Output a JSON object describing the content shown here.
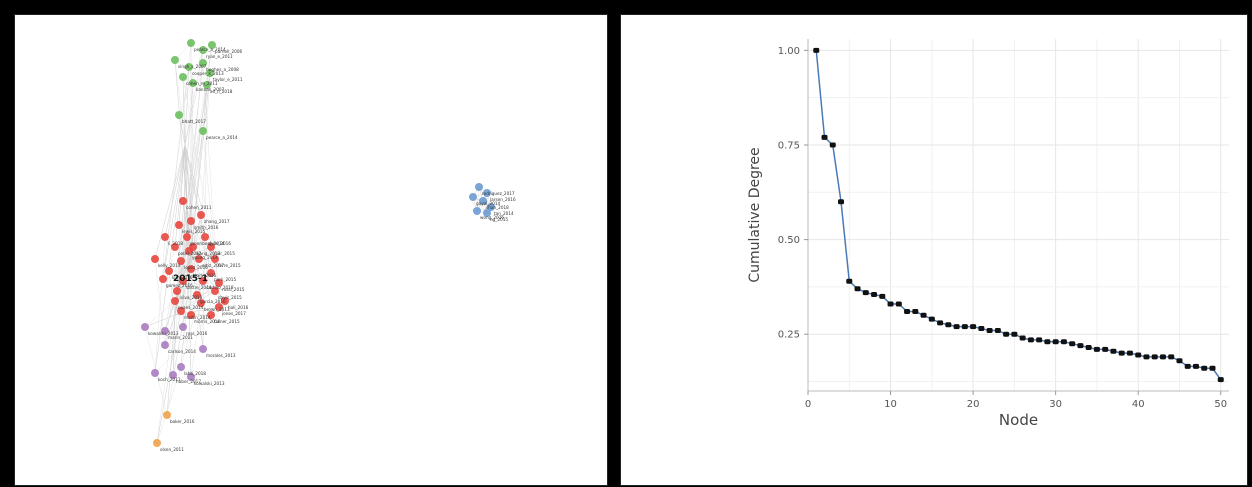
{
  "chart_data": [
    {
      "type": "network",
      "title": "",
      "colors": {
        "green": "#6cbf5e",
        "red": "#e8463f",
        "blue": "#6c9bd2",
        "purple": "#a97cc0",
        "orange": "#f0a24b"
      },
      "clusters": [
        {
          "color": "green",
          "labels": [
            "pearce_a_2014",
            "ryan_e_2011",
            "parnell_2006",
            "singh_s_2007",
            "cooper_k_2013",
            "hughes_a_2008",
            "taylor_e_2011",
            "cohen_m_2011",
            "kannan_2007",
            "ali_n_2018",
            "bhatt_2017"
          ]
        },
        {
          "color": "red",
          "labels": [
            "cohen_2011",
            "lewis_2015",
            "smith_2016",
            "zhang_2017",
            "li_2018",
            "groenberg_2014",
            "chen_2016",
            "patel_2012",
            "wang_2013",
            "nair_2015",
            "kelly_2014",
            "lopez_2016",
            "ortiz_2017",
            "ferre_2015",
            "kim_2016",
            "park_2016",
            "park_2015",
            "sastre_2014",
            "castillo_2018",
            "gomez_2016",
            "rossi_2015",
            "silva_2018",
            "garcia_2016",
            "davis_2015",
            "evans_2014",
            "brown_2013",
            "jones_2017",
            "martin_2014",
            "morris_2016",
            "turner_2015",
            "hall_2016",
            "young_2014"
          ]
        },
        {
          "color": "blue",
          "labels": [
            "rodriguez_2017",
            "larsen_2016",
            "goyal_2014",
            "shah_2018",
            "tan_2014",
            "wong_2016",
            "ng_2015"
          ]
        },
        {
          "color": "purple",
          "labels": [
            "kowalski_2013",
            "marin_2011",
            "ross_2016",
            "carlson_2014",
            "morales_2013",
            "koch_2011",
            "huber_2017",
            "lahti_2018"
          ]
        },
        {
          "color": "orange",
          "labels": [
            "baker_2016",
            "olsen_2011"
          ]
        }
      ],
      "labeled_hub": "2015-1"
    },
    {
      "type": "line",
      "title": "",
      "xlabel": "Node",
      "ylabel": "Cumulative Degree",
      "xlim": [
        0,
        51
      ],
      "ylim": [
        0.1,
        1.03
      ],
      "xticks": [
        0,
        10,
        20,
        30,
        40,
        50
      ],
      "yticks": [
        0.25,
        0.5,
        0.75,
        1.0
      ],
      "ytick_labels": [
        "0.25",
        "0.50",
        "0.75",
        "1.00"
      ],
      "grid": true,
      "line_color": "#4a7ab8",
      "marker_color": "#111111",
      "x": [
        1,
        2,
        3,
        4,
        5,
        6,
        7,
        8,
        9,
        10,
        11,
        12,
        13,
        14,
        15,
        16,
        17,
        18,
        19,
        20,
        21,
        22,
        23,
        24,
        25,
        26,
        27,
        28,
        29,
        30,
        31,
        32,
        33,
        34,
        35,
        36,
        37,
        38,
        39,
        40,
        41,
        42,
        43,
        44,
        45,
        46,
        47,
        48,
        49,
        50
      ],
      "y": [
        1.0,
        0.77,
        0.75,
        0.6,
        0.39,
        0.37,
        0.36,
        0.355,
        0.35,
        0.33,
        0.33,
        0.31,
        0.31,
        0.3,
        0.29,
        0.28,
        0.275,
        0.27,
        0.27,
        0.27,
        0.265,
        0.26,
        0.26,
        0.25,
        0.25,
        0.24,
        0.235,
        0.235,
        0.23,
        0.23,
        0.23,
        0.225,
        0.22,
        0.215,
        0.21,
        0.21,
        0.205,
        0.2,
        0.2,
        0.195,
        0.19,
        0.19,
        0.19,
        0.19,
        0.18,
        0.165,
        0.165,
        0.16,
        0.16,
        0.13
      ]
    }
  ]
}
